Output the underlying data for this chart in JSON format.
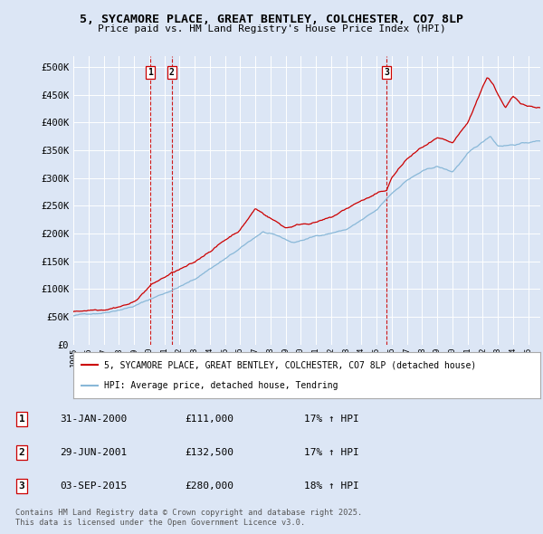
{
  "title": "5, SYCAMORE PLACE, GREAT BENTLEY, COLCHESTER, CO7 8LP",
  "subtitle": "Price paid vs. HM Land Registry's House Price Index (HPI)",
  "ylabel_ticks": [
    "£0",
    "£50K",
    "£100K",
    "£150K",
    "£200K",
    "£250K",
    "£300K",
    "£350K",
    "£400K",
    "£450K",
    "£500K"
  ],
  "ytick_values": [
    0,
    50000,
    100000,
    150000,
    200000,
    250000,
    300000,
    350000,
    400000,
    450000,
    500000
  ],
  "ylim": [
    0,
    520000
  ],
  "xlim_start": 1995.0,
  "xlim_end": 2025.8,
  "background_color": "#dce6f5",
  "plot_bg_color": "#dce6f5",
  "red_line_color": "#cc0000",
  "blue_line_color": "#89b8d8",
  "grid_color": "#ffffff",
  "vline_color": "#cc0000",
  "transactions": [
    {
      "id": 1,
      "date_str": "31-JAN-2000",
      "x": 2000.08,
      "price": 111000,
      "pct": "17%",
      "dir": "↑"
    },
    {
      "id": 2,
      "date_str": "29-JUN-2001",
      "x": 2001.5,
      "price": 132500,
      "pct": "17%",
      "dir": "↑"
    },
    {
      "id": 3,
      "date_str": "03-SEP-2015",
      "x": 2015.67,
      "price": 280000,
      "pct": "18%",
      "dir": "↑"
    }
  ],
  "legend_label_red": "5, SYCAMORE PLACE, GREAT BENTLEY, COLCHESTER, CO7 8LP (detached house)",
  "legend_label_blue": "HPI: Average price, detached house, Tendring",
  "footer_line1": "Contains HM Land Registry data © Crown copyright and database right 2025.",
  "footer_line2": "This data is licensed under the Open Government Licence v3.0.",
  "xtick_years": [
    1995,
    1996,
    1997,
    1998,
    1999,
    2000,
    2001,
    2002,
    2003,
    2004,
    2005,
    2006,
    2007,
    2008,
    2009,
    2010,
    2011,
    2012,
    2013,
    2014,
    2015,
    2016,
    2017,
    2018,
    2019,
    2020,
    2021,
    2022,
    2023,
    2024,
    2025
  ]
}
